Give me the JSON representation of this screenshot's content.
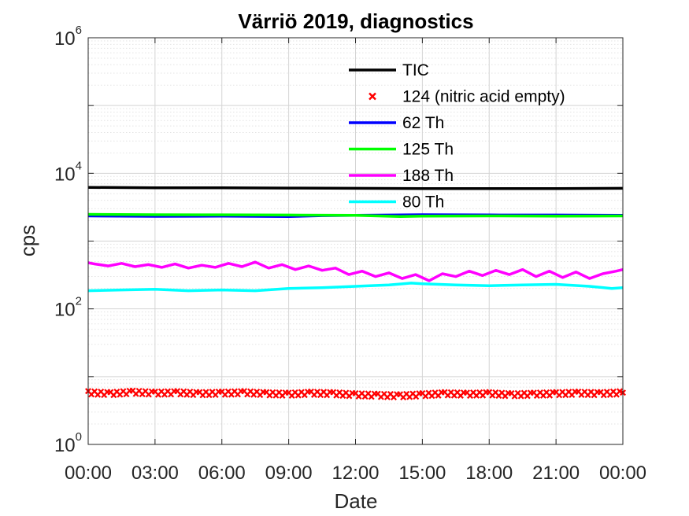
{
  "chart_data": {
    "type": "line",
    "title": "Värriö 2019, diagnostics",
    "xlabel": "Date",
    "ylabel": "cps",
    "yscale": "log",
    "ylim": [
      1,
      1000000
    ],
    "xlim": [
      0,
      24
    ],
    "x_ticks": [
      {
        "value": 0,
        "label": "00:00"
      },
      {
        "value": 3,
        "label": "03:00"
      },
      {
        "value": 6,
        "label": "06:00"
      },
      {
        "value": 9,
        "label": "09:00"
      },
      {
        "value": 12,
        "label": "12:00"
      },
      {
        "value": 15,
        "label": "15:00"
      },
      {
        "value": 18,
        "label": "18:00"
      },
      {
        "value": 21,
        "label": "21:00"
      },
      {
        "value": 24,
        "label": "00:00"
      }
    ],
    "y_ticks": [
      {
        "value": 1,
        "base": "10",
        "exp": "0"
      },
      {
        "value": 100,
        "base": "10",
        "exp": "2"
      },
      {
        "value": 10000,
        "base": "10",
        "exp": "4"
      },
      {
        "value": 1000000,
        "base": "10",
        "exp": "6"
      }
    ],
    "grid": true,
    "legend_position": "top-center",
    "series": [
      {
        "name": "TIC",
        "color": "#000000",
        "marker": "line",
        "x": [
          0,
          3,
          6,
          9,
          12,
          15,
          18,
          21,
          24
        ],
        "y": [
          6200,
          6100,
          6100,
          6050,
          6000,
          5950,
          5950,
          5950,
          6000
        ]
      },
      {
        "name": "124 (nitric acid empty)",
        "color": "#ff0000",
        "marker": "x",
        "x": [
          0,
          1,
          2,
          3,
          4,
          5,
          6,
          7,
          8,
          9,
          10,
          11,
          12,
          13,
          14,
          15,
          16,
          17,
          18,
          19,
          20,
          21,
          22,
          23,
          24
        ],
        "y": [
          5.8,
          5.6,
          5.9,
          5.7,
          5.8,
          5.6,
          5.7,
          5.8,
          5.6,
          5.5,
          5.7,
          5.6,
          5.4,
          5.3,
          5.2,
          5.4,
          5.6,
          5.5,
          5.6,
          5.4,
          5.5,
          5.6,
          5.7,
          5.6,
          5.8
        ]
      },
      {
        "name": "62 Th",
        "color": "#0000ff",
        "marker": "line",
        "x": [
          0,
          3,
          6,
          9,
          10.5,
          12,
          15,
          18,
          21,
          24
        ],
        "y": [
          2350,
          2320,
          2330,
          2300,
          2380,
          2400,
          2450,
          2430,
          2420,
          2400
        ]
      },
      {
        "name": "125 Th",
        "color": "#00ff00",
        "marker": "line",
        "x": [
          0,
          3,
          6,
          9,
          12,
          14,
          15,
          18,
          21,
          24
        ],
        "y": [
          2480,
          2450,
          2440,
          2420,
          2400,
          2300,
          2330,
          2350,
          2330,
          2350
        ]
      },
      {
        "name": "188 Th",
        "color": "#ff00ff",
        "marker": "line",
        "x": [
          0,
          0.3,
          0.9,
          1.5,
          2.1,
          2.7,
          3.3,
          3.9,
          4.5,
          5.1,
          5.7,
          6.3,
          6.9,
          7.5,
          8.1,
          8.7,
          9.3,
          9.9,
          10.5,
          11.1,
          11.7,
          12.3,
          12.9,
          13.5,
          14.1,
          14.7,
          15.3,
          15.9,
          16.5,
          17.1,
          17.7,
          18.3,
          18.9,
          19.5,
          20.1,
          20.7,
          21.3,
          21.9,
          22.5,
          23.1,
          23.7,
          24
        ],
        "y": [
          480,
          460,
          430,
          470,
          420,
          450,
          410,
          460,
          400,
          440,
          410,
          470,
          420,
          490,
          400,
          450,
          380,
          430,
          370,
          400,
          320,
          360,
          300,
          340,
          280,
          320,
          260,
          330,
          300,
          360,
          310,
          370,
          320,
          380,
          300,
          360,
          290,
          350,
          280,
          330,
          360,
          380
        ]
      },
      {
        "name": "80 Th",
        "color": "#00ffff",
        "marker": "line",
        "x": [
          0,
          1.5,
          3,
          4.5,
          6,
          7.5,
          9,
          10.5,
          12,
          13.5,
          14.5,
          15,
          16.5,
          18,
          19.5,
          21,
          22.5,
          23.5,
          24
        ],
        "y": [
          185,
          190,
          195,
          185,
          190,
          185,
          200,
          205,
          215,
          225,
          240,
          235,
          225,
          220,
          225,
          230,
          215,
          200,
          205
        ]
      }
    ]
  }
}
